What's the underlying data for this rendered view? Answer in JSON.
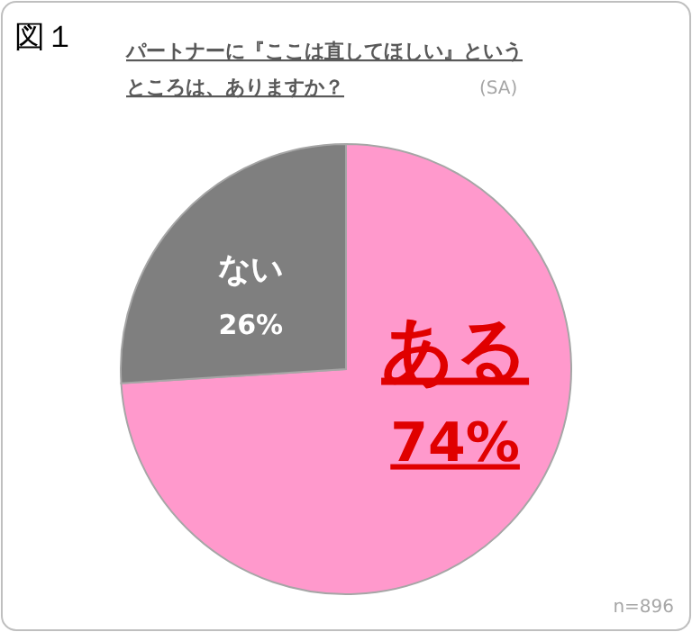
{
  "chart_data": {
    "type": "pie",
    "title": "パートナーに『ここは直してほしい』というところは、ありますか？",
    "categories": [
      "ある",
      "ない"
    ],
    "values": [
      74,
      26
    ],
    "value_labels": [
      "74%",
      "26%"
    ],
    "colors": [
      "#ff99cc",
      "#7f7f7f"
    ],
    "annotations": [
      "図１",
      "(SA)",
      "n=896"
    ]
  }
}
